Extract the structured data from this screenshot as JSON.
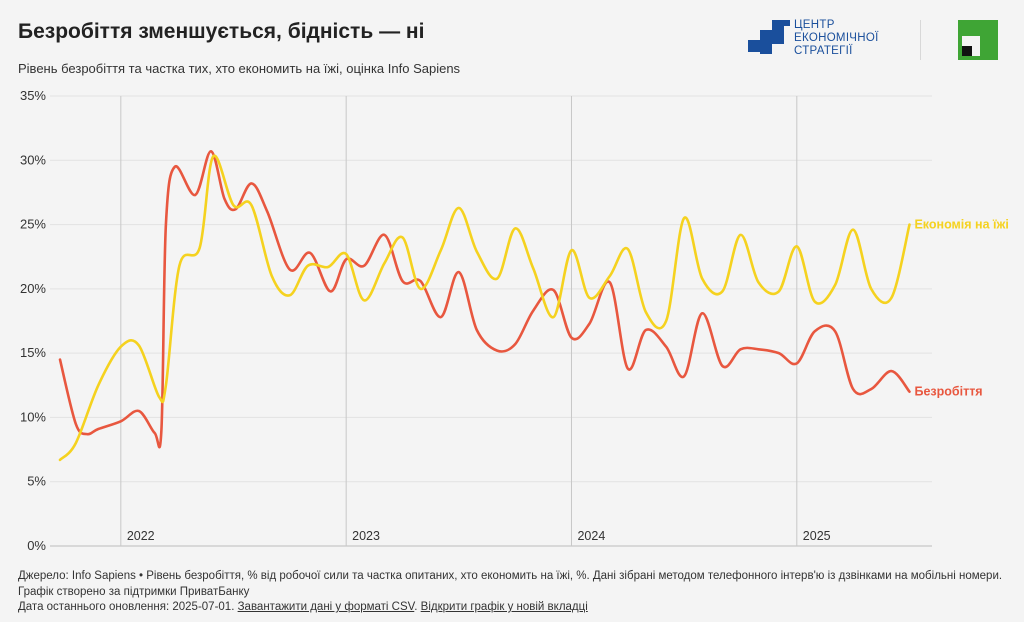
{
  "title": "Безробіття зменшується, бідність — ні",
  "subtitle": "Рівень безробіття та частка тих, хто економить на їжі, оцінка Info Sapiens",
  "logos": {
    "ces_line1": "ЦЕНТР",
    "ces_line2": "ЕКОНОМІЧНОЇ",
    "ces_line3": "СТРАТЕГІЇ",
    "ces_color": "#1a4f9c",
    "privat_color": "#3fa535"
  },
  "footer": {
    "source": "Джерело: Info Sapiens • Рівень безробіття, % від робочої сили та частка опитаних, хто економить на їжі, %. Дані зібрані методом телефонного інтерв'ю із дзвінками на мобільні номери.",
    "support": "Графік створено за підтримки ПриватБанку",
    "updated": "Дата останнього оновлення: 2025-07-01.",
    "csv_link": "Завантажити дані у форматі CSV",
    "new_tab_link": "Відкрити графік у новій вкладці"
  },
  "chart_data": {
    "type": "line",
    "yticks": [
      "0%",
      "5%",
      "10%",
      "15%",
      "20%",
      "25%",
      "30%",
      "35%"
    ],
    "ylim": [
      0,
      35
    ],
    "xlim": [
      2021.73,
      2025.6
    ],
    "xticks": [
      {
        "label": "2022",
        "value": 2022
      },
      {
        "label": "2023",
        "value": 2023
      },
      {
        "label": "2024",
        "value": 2024
      },
      {
        "label": "2025",
        "value": 2025
      }
    ],
    "grid": true,
    "series": [
      {
        "name": "Безробіття",
        "color": "#e8573f",
        "points": [
          [
            2021.73,
            14.5
          ],
          [
            2021.8,
            9.5
          ],
          [
            2021.85,
            8.7
          ],
          [
            2021.9,
            9.1
          ],
          [
            2022.0,
            9.7
          ],
          [
            2022.08,
            10.5
          ],
          [
            2022.15,
            8.8
          ],
          [
            2022.18,
            9.0
          ],
          [
            2022.2,
            25.0
          ],
          [
            2022.24,
            29.5
          ],
          [
            2022.33,
            27.3
          ],
          [
            2022.4,
            30.7
          ],
          [
            2022.46,
            27.0
          ],
          [
            2022.51,
            26.2
          ],
          [
            2022.58,
            28.2
          ],
          [
            2022.65,
            26.0
          ],
          [
            2022.75,
            21.5
          ],
          [
            2022.84,
            22.8
          ],
          [
            2022.93,
            19.8
          ],
          [
            2023.0,
            22.3
          ],
          [
            2023.08,
            21.8
          ],
          [
            2023.17,
            24.2
          ],
          [
            2023.25,
            20.6
          ],
          [
            2023.33,
            20.6
          ],
          [
            2023.42,
            17.8
          ],
          [
            2023.5,
            21.3
          ],
          [
            2023.58,
            16.8
          ],
          [
            2023.67,
            15.2
          ],
          [
            2023.75,
            15.7
          ],
          [
            2023.83,
            18.3
          ],
          [
            2023.92,
            19.9
          ],
          [
            2024.0,
            16.2
          ],
          [
            2024.08,
            17.3
          ],
          [
            2024.17,
            20.5
          ],
          [
            2024.25,
            13.8
          ],
          [
            2024.33,
            16.8
          ],
          [
            2024.42,
            15.5
          ],
          [
            2024.5,
            13.2
          ],
          [
            2024.58,
            18.1
          ],
          [
            2024.67,
            14.0
          ],
          [
            2024.75,
            15.3
          ],
          [
            2024.83,
            15.3
          ],
          [
            2024.92,
            15.0
          ],
          [
            2025.0,
            14.2
          ],
          [
            2025.08,
            16.7
          ],
          [
            2025.17,
            16.7
          ],
          [
            2025.25,
            12.2
          ],
          [
            2025.33,
            12.2
          ],
          [
            2025.42,
            13.6
          ],
          [
            2025.5,
            12.0
          ]
        ]
      },
      {
        "name": "Економія на їжі",
        "color": "#f5d21f",
        "points": [
          [
            2021.73,
            6.7
          ],
          [
            2021.8,
            8.0
          ],
          [
            2021.9,
            12.5
          ],
          [
            2022.0,
            15.5
          ],
          [
            2022.08,
            15.6
          ],
          [
            2022.17,
            11.6
          ],
          [
            2022.2,
            12.5
          ],
          [
            2022.26,
            21.8
          ],
          [
            2022.35,
            23.2
          ],
          [
            2022.41,
            30.3
          ],
          [
            2022.5,
            26.5
          ],
          [
            2022.58,
            26.5
          ],
          [
            2022.67,
            21.0
          ],
          [
            2022.75,
            19.5
          ],
          [
            2022.83,
            21.8
          ],
          [
            2022.92,
            21.7
          ],
          [
            2023.0,
            22.7
          ],
          [
            2023.08,
            19.1
          ],
          [
            2023.17,
            22.0
          ],
          [
            2023.25,
            24.0
          ],
          [
            2023.33,
            20.0
          ],
          [
            2023.42,
            23.0
          ],
          [
            2023.5,
            26.3
          ],
          [
            2023.58,
            22.9
          ],
          [
            2023.67,
            20.8
          ],
          [
            2023.75,
            24.7
          ],
          [
            2023.83,
            21.6
          ],
          [
            2023.92,
            17.8
          ],
          [
            2024.0,
            23.0
          ],
          [
            2024.08,
            19.3
          ],
          [
            2024.17,
            21.0
          ],
          [
            2024.25,
            23.1
          ],
          [
            2024.33,
            18.2
          ],
          [
            2024.42,
            17.5
          ],
          [
            2024.5,
            25.5
          ],
          [
            2024.58,
            20.8
          ],
          [
            2024.67,
            19.8
          ],
          [
            2024.75,
            24.2
          ],
          [
            2024.83,
            20.5
          ],
          [
            2024.92,
            19.8
          ],
          [
            2025.0,
            23.3
          ],
          [
            2025.08,
            19.0
          ],
          [
            2025.17,
            20.3
          ],
          [
            2025.25,
            24.6
          ],
          [
            2025.33,
            20.0
          ],
          [
            2025.42,
            19.3
          ],
          [
            2025.5,
            25.0
          ]
        ]
      }
    ]
  }
}
